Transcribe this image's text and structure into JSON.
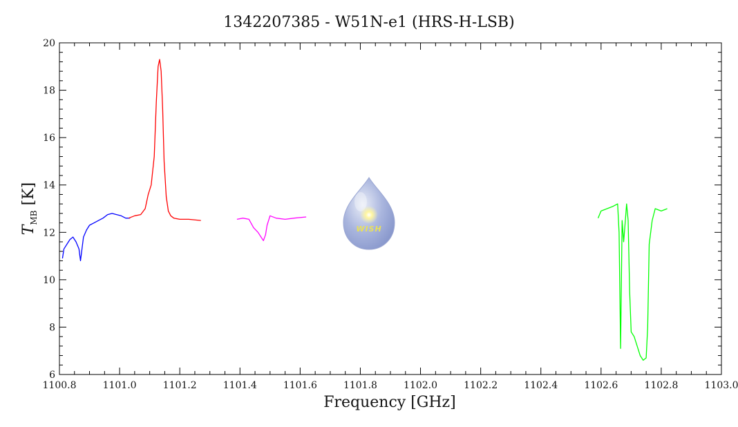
{
  "chart_data": {
    "type": "line",
    "title": "1342207385 - W51N-e1 (HRS-H-LSB)",
    "xlabel": "Frequency [GHz]",
    "ylabel": {
      "main": "T",
      "sub": "MB",
      "unit": " [K]"
    },
    "xlim": [
      1100.8,
      1103.0
    ],
    "ylim": [
      6,
      20
    ],
    "xticks": [
      "1100.8",
      "1101.0",
      "1101.2",
      "1101.4",
      "1101.6",
      "1101.8",
      "1102.0",
      "1102.2",
      "1102.4",
      "1102.6",
      "1102.8",
      "1103.0"
    ],
    "yticks": [
      "6",
      "8",
      "10",
      "12",
      "14",
      "16",
      "18",
      "20"
    ],
    "grid": false,
    "logo_text": "WISH",
    "series": [
      {
        "color": "#0000ff",
        "x": [
          1100.81,
          1100.815,
          1100.825,
          1100.835,
          1100.845,
          1100.855,
          1100.865,
          1100.87,
          1100.88,
          1100.89,
          1100.9,
          1100.915,
          1100.93,
          1100.945,
          1100.96,
          1100.975,
          1100.99,
          1101.005,
          1101.02,
          1101.035
        ],
        "y": [
          10.9,
          11.3,
          11.5,
          11.7,
          11.8,
          11.6,
          11.3,
          10.8,
          11.8,
          12.1,
          12.3,
          12.4,
          12.5,
          12.6,
          12.75,
          12.8,
          12.75,
          12.7,
          12.6,
          12.6
        ]
      },
      {
        "color": "#ff0000",
        "x": [
          1101.03,
          1101.05,
          1101.07,
          1101.085,
          1101.095,
          1101.105,
          1101.115,
          1101.122,
          1101.128,
          1101.133,
          1101.138,
          1101.143,
          1101.148,
          1101.155,
          1101.162,
          1101.17,
          1101.18,
          1101.2,
          1101.23,
          1101.27
        ],
        "y": [
          12.6,
          12.7,
          12.75,
          13.0,
          13.6,
          14.0,
          15.2,
          17.5,
          19.0,
          19.3,
          18.8,
          17.2,
          15.0,
          13.5,
          12.9,
          12.7,
          12.6,
          12.55,
          12.55,
          12.5
        ]
      },
      {
        "color": "#ff00ff",
        "x": [
          1101.39,
          1101.41,
          1101.43,
          1101.445,
          1101.46,
          1101.47,
          1101.478,
          1101.485,
          1101.49,
          1101.5,
          1101.52,
          1101.55,
          1101.58,
          1101.62
        ],
        "y": [
          12.55,
          12.6,
          12.55,
          12.2,
          12.0,
          11.8,
          11.65,
          11.9,
          12.3,
          12.7,
          12.6,
          12.55,
          12.6,
          12.65
        ]
      },
      {
        "color": "#00ff00",
        "x": [
          1102.59,
          1102.6,
          1102.62,
          1102.64,
          1102.655,
          1102.66,
          1102.665,
          1102.67,
          1102.675,
          1102.68,
          1102.685,
          1102.69,
          1102.695,
          1102.7,
          1102.71,
          1102.72,
          1102.73,
          1102.74,
          1102.75,
          1102.755,
          1102.76,
          1102.77,
          1102.78,
          1102.8,
          1102.82
        ],
        "y": [
          12.6,
          12.9,
          13.0,
          13.1,
          13.2,
          12.0,
          7.1,
          12.5,
          11.6,
          12.4,
          13.2,
          12.5,
          9.5,
          7.8,
          7.6,
          7.2,
          6.8,
          6.6,
          6.7,
          8.0,
          11.5,
          12.5,
          13.0,
          12.9,
          13.0
        ]
      }
    ]
  }
}
